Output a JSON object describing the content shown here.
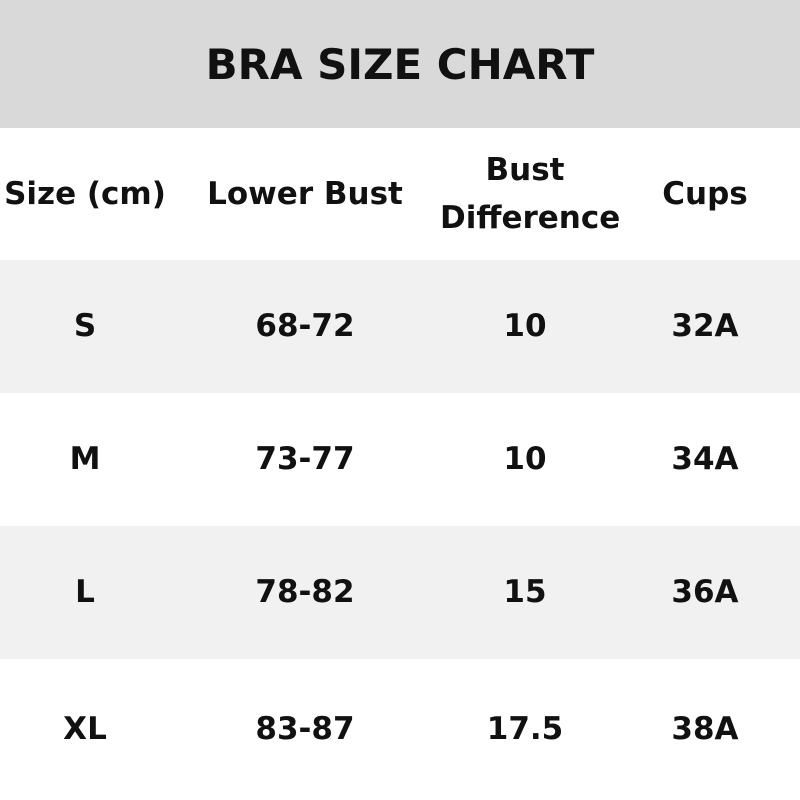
{
  "title": "BRA SIZE CHART",
  "columns": [
    "Size (cm)",
    "Lower Bust",
    "Bust Difference",
    "Cups"
  ],
  "header_lines": {
    "bust_difference": [
      "Bust",
      "Difference"
    ]
  },
  "rows": [
    [
      "S",
      "68-72",
      "10",
      "32A"
    ],
    [
      "M",
      "73-77",
      "10",
      "34A"
    ],
    [
      "L",
      "78-82",
      "15",
      "36A"
    ],
    [
      "XL",
      "83-87",
      "17.5",
      "38A"
    ]
  ],
  "colors": {
    "title_band": "#d9d9d9",
    "stripe": "#f1f1f1",
    "text": "#111111"
  }
}
